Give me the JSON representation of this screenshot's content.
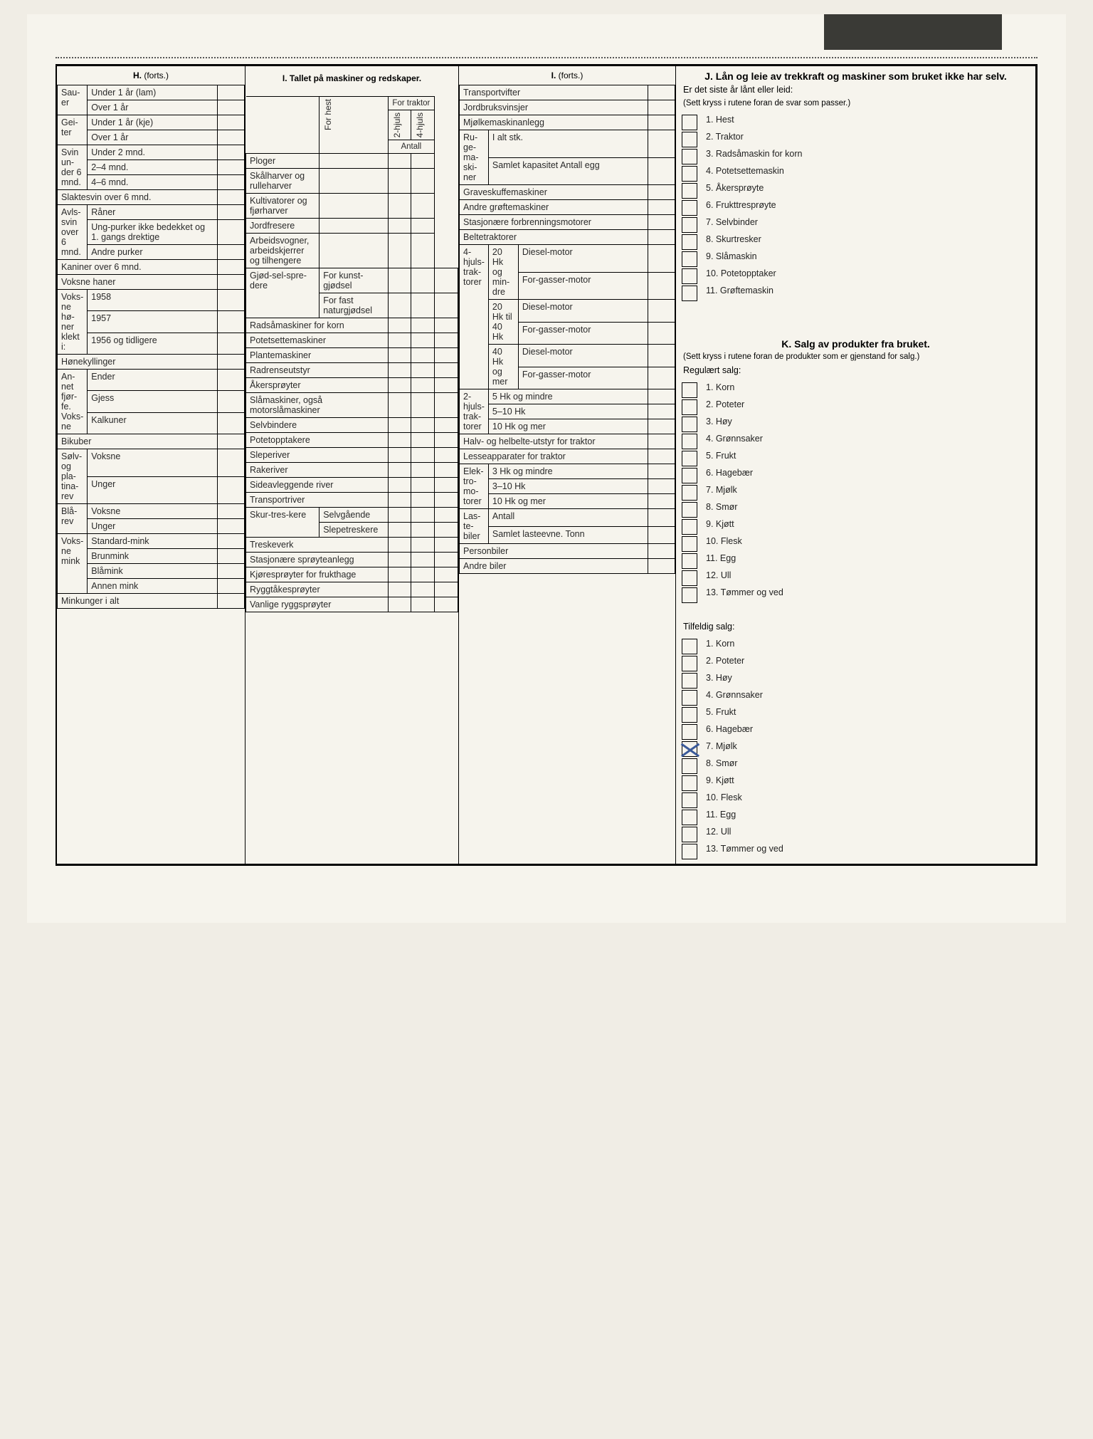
{
  "colH": {
    "title": "H.",
    "title_suffix": " (forts.)",
    "groups": [
      {
        "span": "Sau-er",
        "rows": [
          {
            "l": "Under 1 år (lam)"
          },
          {
            "l": "Over 1 år"
          }
        ]
      },
      {
        "span": "Gei-ter",
        "rows": [
          {
            "l": "Under 1 år (kje)"
          },
          {
            "l": "Over 1 år"
          }
        ]
      },
      {
        "span": "Svin un-der 6 mnd.",
        "rows": [
          {
            "l": "Under 2 mnd."
          },
          {
            "l": "2–4 mnd."
          },
          {
            "l": "4–6 mnd."
          }
        ]
      }
    ],
    "row_slakte": "Slaktesvin over 6 mnd.",
    "avls": {
      "span": "Avls-svin over 6 mnd.",
      "rows": [
        "Råner",
        "Ung-purker ikke bedekket og 1. gangs drektige",
        "Andre purker"
      ]
    },
    "row_kanin": "Kaniner over 6 mnd.",
    "row_haner": "Voksne haner",
    "honer": {
      "span": "Voks-ne hø-ner klekt i:",
      "rows": [
        "1958",
        "1957",
        "1956 og tidligere"
      ]
    },
    "row_kyll": "Hønekyllinger",
    "annet": {
      "span": "An-net fjør-fe. Voks-ne",
      "rows": [
        "Ender",
        "Gjess",
        "Kalkuner"
      ]
    },
    "row_bik": "Bikuber",
    "solv": {
      "span": "Sølv- og pla-tina-rev",
      "rows": [
        "Voksne",
        "Unger"
      ]
    },
    "bla": {
      "span": "Blå-rev",
      "rows": [
        "Voksne",
        "Unger"
      ]
    },
    "mink": {
      "span": "Voks-ne mink",
      "rows": [
        "Standard-mink",
        "Brunmink",
        "Blåmink",
        "Annen mink"
      ]
    },
    "row_minkunger": "Minkunger i alt"
  },
  "colI1": {
    "title": "I. Tallet på maskiner og redskaper.",
    "head_cols": {
      "forhest": "For hest",
      "fortraktor": "For traktor",
      "h2": "2-hjuls",
      "h4": "4-hjuls",
      "antall": "Antall"
    },
    "rows1": [
      "Ploger",
      "Skålharver og rulleharver",
      "Kultivatorer og fjørharver",
      "Jordfresere",
      "Arbeidsvogner, arbeidskjerrer og tilhengere"
    ],
    "gjod": {
      "span": "Gjød-sel-spre-dere",
      "rows": [
        "For kunst-gjødsel",
        "For fast naturgjødsel"
      ]
    },
    "rows2": [
      "Radsåmaskiner for korn",
      "Potetsettemaskiner",
      "Plantemaskiner",
      "Radrenseutstyr",
      "Åkersprøyter",
      "Slåmaskiner, også motorslåmaskiner",
      "Selvbindere",
      "Potetopptakere",
      "Sleperiver",
      "Rakeriver",
      "Sideavleggende river",
      "Transportriver"
    ],
    "skur": {
      "span": "Skur-tres-kere",
      "rows": [
        "Selvgående",
        "Slepetreskere"
      ]
    },
    "rows3": [
      "Treskeverk",
      "Stasjonære sprøyteanlegg",
      "Kjøresprøyter for frukthage",
      "Ryggtåkesprøyter",
      "Vanlige ryggsprøyter"
    ]
  },
  "colI2": {
    "title": "I.",
    "title_suffix": " (forts.)",
    "rows_top": [
      "Transportvifter",
      "Jordbruksvinsjer",
      "Mjølkemaskinanlegg"
    ],
    "ruge": {
      "span": "Ru-ge-ma-ski-ner",
      "rows": [
        "I alt stk.",
        "Samlet kapasitet Antall egg"
      ]
    },
    "rows_mid": [
      "Graveskuffemaskiner",
      "Andre grøftemaskiner",
      "Stasjonære forbrenningsmotorer",
      "Beltetraktorer"
    ],
    "trak4": {
      "span": "4-hjuls-trak-torer",
      "grp": [
        {
          "sub": "20 Hk og min-dre",
          "r": [
            "Diesel-motor",
            "For-gasser-motor"
          ]
        },
        {
          "sub": "20 Hk til 40 Hk",
          "r": [
            "Diesel-motor",
            "For-gasser-motor"
          ]
        },
        {
          "sub": "40 Hk og mer",
          "r": [
            "Diesel-motor",
            "For-gasser-motor"
          ]
        }
      ]
    },
    "trak2": {
      "span": "2-hjuls-trak-torer",
      "rows": [
        "5 Hk og mindre",
        "5–10 Hk",
        "10 Hk og mer"
      ]
    },
    "row_halv": "Halv- og helbelte-utstyr for traktor",
    "row_lesse": "Lesseapparater for traktor",
    "elek": {
      "span": "Elek-tro-mo-torer",
      "rows": [
        "3 Hk og mindre",
        "3–10 Hk",
        "10 Hk og mer"
      ]
    },
    "laste": {
      "span": "Las-te-biler",
      "rows": [
        "Antall",
        "Samlet lasteevne. Tonn"
      ]
    },
    "rows_bot": [
      "Personbiler",
      "Andre biler"
    ]
  },
  "colJ": {
    "title": "J. Lån og leie av trekkraft og maskiner som bruket ikke har selv.",
    "q": "Er det siste år lånt eller leid:",
    "note": "(Sett kryss i rutene foran de svar som passer.)",
    "items": [
      "1. Hest",
      "2. Traktor",
      "3. Radsåmaskin for korn",
      "4. Potetsettemaskin",
      "5. Åkersprøyte",
      "6. Frukttresprøyte",
      "7. Selvbinder",
      "8. Skurtresker",
      "9. Slåmaskin",
      "10. Potetopptaker",
      "11. Grøftemaskin"
    ]
  },
  "colK": {
    "title": "K. Salg av produkter fra bruket.",
    "note": "(Sett kryss i rutene foran de produkter som er gjenstand for salg.)",
    "reg_head": "Regulært salg:",
    "reg": [
      "1. Korn",
      "2. Poteter",
      "3. Høy",
      "4. Grønnsaker",
      "5. Frukt",
      "6. Hagebær",
      "7. Mjølk",
      "8. Smør",
      "9. Kjøtt",
      "10. Flesk",
      "11. Egg",
      "12. Ull",
      "13. Tømmer og ved"
    ],
    "tilf_head": "Tilfeldig salg:",
    "tilf": [
      "1. Korn",
      "2. Poteter",
      "3. Høy",
      "4. Grønnsaker",
      "5. Frukt",
      "6. Hagebær",
      "7. Mjølk",
      "8. Smør",
      "9. Kjøtt",
      "10. Flesk",
      "11. Egg",
      "12. Ull",
      "13. Tømmer og ved"
    ],
    "tilf_checked_index": 6
  }
}
